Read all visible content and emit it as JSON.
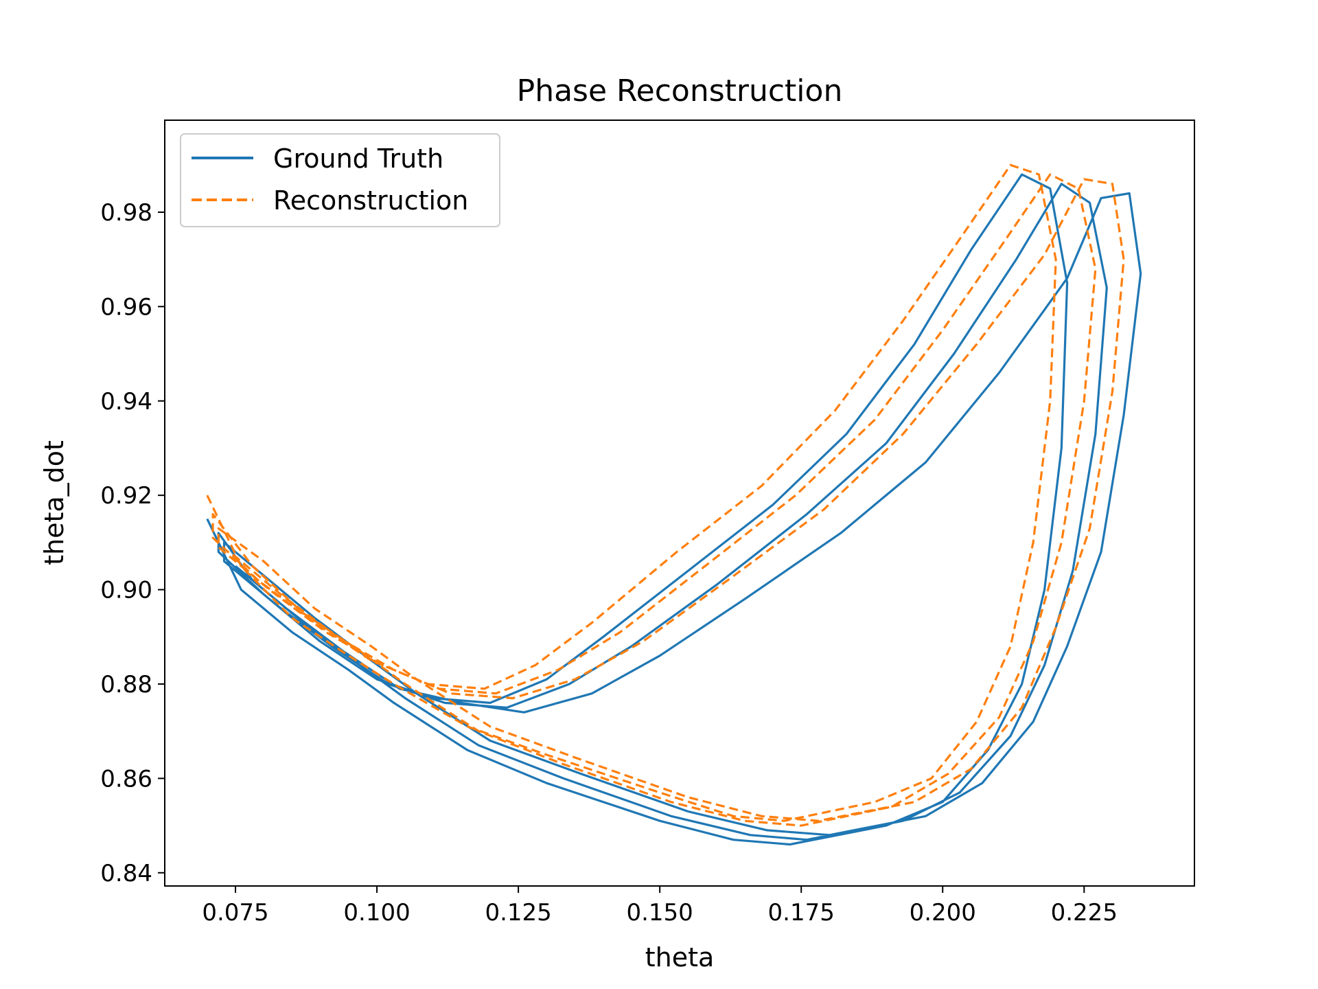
{
  "chart_data": {
    "type": "line",
    "title": "Phase Reconstruction",
    "xlabel": "theta",
    "ylabel": "theta_dot",
    "xlim": [
      0.0625,
      0.2445
    ],
    "ylim": [
      0.8372,
      0.9995
    ],
    "xticks": [
      0.075,
      0.1,
      0.125,
      0.15,
      0.175,
      0.2,
      0.225
    ],
    "xtick_labels": [
      "0.075",
      "0.100",
      "0.125",
      "0.150",
      "0.175",
      "0.200",
      "0.225"
    ],
    "yticks": [
      0.84,
      0.86,
      0.88,
      0.9,
      0.92,
      0.94,
      0.96,
      0.98
    ],
    "ytick_labels": [
      "0.84",
      "0.86",
      "0.88",
      "0.90",
      "0.92",
      "0.94",
      "0.96",
      "0.98"
    ],
    "grid": false,
    "legend_position": "upper-left",
    "series": [
      {
        "name": "Ground Truth",
        "color": "#1f77b4",
        "style": "solid",
        "x": [
          0.07,
          0.076,
          0.085,
          0.095,
          0.103,
          0.116,
          0.13,
          0.15,
          0.163,
          0.173,
          0.19,
          0.2,
          0.208,
          0.214,
          0.218,
          0.221,
          0.222,
          0.219,
          0.214,
          0.205,
          0.195,
          0.183,
          0.17,
          0.155,
          0.14,
          0.13,
          0.12,
          0.11,
          0.1,
          0.09,
          0.08,
          0.072,
          0.072,
          0.078,
          0.087,
          0.097,
          0.105,
          0.118,
          0.133,
          0.152,
          0.166,
          0.176,
          0.193,
          0.203,
          0.212,
          0.218,
          0.223,
          0.227,
          0.229,
          0.226,
          0.221,
          0.213,
          0.202,
          0.19,
          0.176,
          0.16,
          0.145,
          0.134,
          0.123,
          0.112,
          0.102,
          0.092,
          0.082,
          0.073,
          0.073,
          0.08,
          0.089,
          0.099,
          0.107,
          0.12,
          0.136,
          0.155,
          0.169,
          0.18,
          0.197,
          0.207,
          0.216,
          0.222,
          0.228,
          0.232,
          0.235,
          0.233,
          0.228,
          0.222,
          0.21,
          0.197,
          0.182,
          0.165,
          0.15,
          0.138,
          0.126,
          0.115,
          0.104,
          0.094,
          0.084,
          0.075
        ],
        "y": [
          0.915,
          0.9,
          0.891,
          0.883,
          0.876,
          0.866,
          0.859,
          0.851,
          0.847,
          0.846,
          0.85,
          0.855,
          0.866,
          0.88,
          0.9,
          0.93,
          0.965,
          0.985,
          0.988,
          0.972,
          0.952,
          0.933,
          0.918,
          0.904,
          0.89,
          0.881,
          0.876,
          0.877,
          0.881,
          0.889,
          0.899,
          0.908,
          0.912,
          0.902,
          0.893,
          0.884,
          0.877,
          0.867,
          0.86,
          0.852,
          0.848,
          0.847,
          0.851,
          0.857,
          0.869,
          0.884,
          0.904,
          0.933,
          0.964,
          0.982,
          0.986,
          0.97,
          0.95,
          0.931,
          0.916,
          0.901,
          0.888,
          0.88,
          0.875,
          0.876,
          0.88,
          0.888,
          0.897,
          0.906,
          0.91,
          0.903,
          0.894,
          0.885,
          0.878,
          0.868,
          0.861,
          0.853,
          0.849,
          0.848,
          0.852,
          0.859,
          0.872,
          0.888,
          0.908,
          0.937,
          0.967,
          0.984,
          0.983,
          0.966,
          0.946,
          0.927,
          0.912,
          0.898,
          0.886,
          0.878,
          0.874,
          0.876,
          0.879,
          0.887,
          0.896,
          0.905
        ]
      },
      {
        "name": "Reconstruction",
        "color": "#ff7f0e",
        "style": "dashed",
        "x": [
          0.07,
          0.076,
          0.085,
          0.095,
          0.103,
          0.116,
          0.13,
          0.15,
          0.163,
          0.172,
          0.188,
          0.198,
          0.206,
          0.212,
          0.216,
          0.219,
          0.22,
          0.217,
          0.212,
          0.204,
          0.193,
          0.181,
          0.168,
          0.153,
          0.138,
          0.128,
          0.119,
          0.109,
          0.099,
          0.089,
          0.079,
          0.071,
          0.071,
          0.078,
          0.087,
          0.097,
          0.105,
          0.118,
          0.133,
          0.152,
          0.165,
          0.175,
          0.191,
          0.201,
          0.21,
          0.216,
          0.221,
          0.225,
          0.227,
          0.224,
          0.219,
          0.211,
          0.2,
          0.188,
          0.174,
          0.158,
          0.143,
          0.132,
          0.121,
          0.111,
          0.101,
          0.091,
          0.081,
          0.072,
          0.072,
          0.08,
          0.089,
          0.099,
          0.107,
          0.12,
          0.136,
          0.155,
          0.168,
          0.178,
          0.195,
          0.205,
          0.214,
          0.22,
          0.226,
          0.23,
          0.232,
          0.23,
          0.225,
          0.218,
          0.206,
          0.193,
          0.179,
          0.162,
          0.147,
          0.135,
          0.124,
          0.113,
          0.103,
          0.093,
          0.083,
          0.074
        ],
        "y": [
          0.92,
          0.905,
          0.894,
          0.886,
          0.88,
          0.871,
          0.865,
          0.857,
          0.852,
          0.851,
          0.855,
          0.86,
          0.872,
          0.888,
          0.91,
          0.94,
          0.97,
          0.988,
          0.99,
          0.976,
          0.957,
          0.938,
          0.922,
          0.908,
          0.893,
          0.884,
          0.879,
          0.88,
          0.885,
          0.893,
          0.902,
          0.911,
          0.916,
          0.905,
          0.895,
          0.887,
          0.88,
          0.87,
          0.863,
          0.855,
          0.851,
          0.85,
          0.854,
          0.861,
          0.873,
          0.889,
          0.91,
          0.94,
          0.968,
          0.985,
          0.988,
          0.974,
          0.955,
          0.936,
          0.92,
          0.905,
          0.891,
          0.883,
          0.878,
          0.879,
          0.884,
          0.891,
          0.9,
          0.909,
          0.913,
          0.906,
          0.896,
          0.888,
          0.881,
          0.871,
          0.864,
          0.856,
          0.852,
          0.851,
          0.855,
          0.862,
          0.875,
          0.892,
          0.913,
          0.942,
          0.97,
          0.986,
          0.987,
          0.971,
          0.952,
          0.933,
          0.917,
          0.902,
          0.889,
          0.881,
          0.877,
          0.878,
          0.883,
          0.89,
          0.899,
          0.908
        ]
      }
    ]
  }
}
